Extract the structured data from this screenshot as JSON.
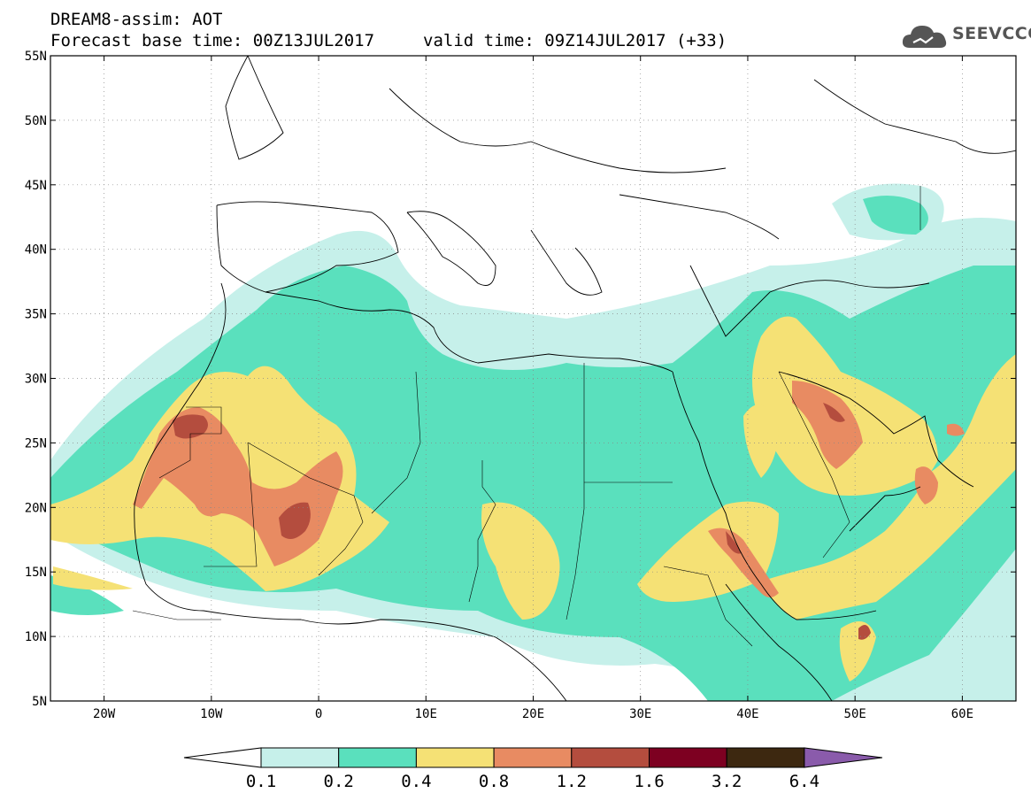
{
  "header": {
    "title": "DREAM8-assim: AOT",
    "base_time": "Forecast base time: 00Z13JUL2017",
    "valid_time": "valid time: 09Z14JUL2017 (+33)"
  },
  "logo": {
    "text": "SEEVCCC",
    "icon": "cloud-icon",
    "color": "#555555"
  },
  "map": {
    "lon_range": [
      -25,
      65
    ],
    "lat_range": [
      5,
      55
    ],
    "lat_ticks": [
      "55N",
      "50N",
      "45N",
      "40N",
      "35N",
      "30N",
      "25N",
      "20N",
      "15N",
      "10N",
      "5N"
    ],
    "lon_ticks": [
      "20W",
      "10W",
      "0",
      "10E",
      "20E",
      "30E",
      "40E",
      "50E",
      "60E"
    ],
    "gridlines": true
  },
  "colorbar": {
    "labels": [
      "0.1",
      "0.2",
      "0.4",
      "0.8",
      "1.2",
      "1.6",
      "3.2",
      "6.4"
    ],
    "colors": [
      "#ffffff",
      "#c6f0ea",
      "#5ae0bd",
      "#f5e175",
      "#e88b62",
      "#b44d3e",
      "#7d0021",
      "#3d2810",
      "#8a5bab"
    ]
  }
}
